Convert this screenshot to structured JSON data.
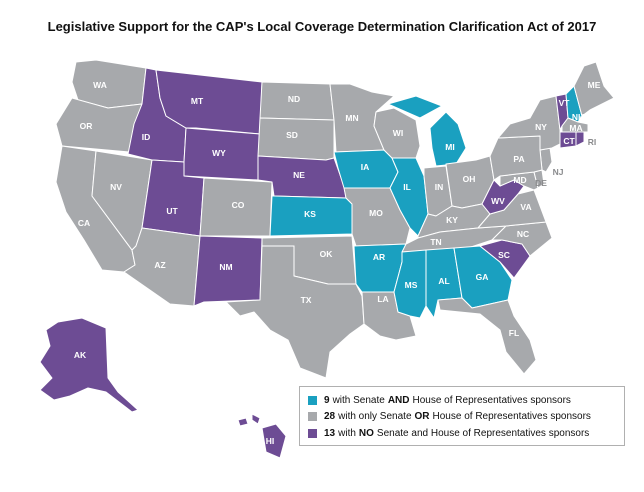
{
  "title": "Legislative Support for the CAP's Local Coverage Determination Clarification Act of 2017",
  "colors": {
    "both": "#1aa0c0",
    "one": "#a7a9ac",
    "none": "#6d4c94",
    "outside_label": "#8a8b8d"
  },
  "legend": {
    "items": [
      {
        "key": "both",
        "count": "9",
        "pre": "with Senate",
        "emph": "AND",
        "post": "House of Representatives sponsors"
      },
      {
        "key": "one",
        "count": "28",
        "pre": "with only Senate",
        "emph": "OR",
        "post": "House of Representatives sponsors"
      },
      {
        "key": "none",
        "count": "13",
        "pre": "with",
        "emph": "NO",
        "post": "Senate and House of Representatives sponsors"
      }
    ]
  },
  "states": [
    {
      "abbr": "WA",
      "status": "one"
    },
    {
      "abbr": "OR",
      "status": "one"
    },
    {
      "abbr": "CA",
      "status": "one"
    },
    {
      "abbr": "NV",
      "status": "one"
    },
    {
      "abbr": "ID",
      "status": "none"
    },
    {
      "abbr": "MT",
      "status": "none"
    },
    {
      "abbr": "WY",
      "status": "none"
    },
    {
      "abbr": "UT",
      "status": "none"
    },
    {
      "abbr": "AZ",
      "status": "one"
    },
    {
      "abbr": "CO",
      "status": "one"
    },
    {
      "abbr": "NM",
      "status": "none"
    },
    {
      "abbr": "ND",
      "status": "one"
    },
    {
      "abbr": "SD",
      "status": "one"
    },
    {
      "abbr": "NE",
      "status": "none"
    },
    {
      "abbr": "KS",
      "status": "both"
    },
    {
      "abbr": "OK",
      "status": "one"
    },
    {
      "abbr": "TX",
      "status": "one"
    },
    {
      "abbr": "MN",
      "status": "one"
    },
    {
      "abbr": "IA",
      "status": "both"
    },
    {
      "abbr": "MO",
      "status": "one"
    },
    {
      "abbr": "AR",
      "status": "both"
    },
    {
      "abbr": "LA",
      "status": "one"
    },
    {
      "abbr": "WI",
      "status": "one"
    },
    {
      "abbr": "IL",
      "status": "both"
    },
    {
      "abbr": "MI",
      "status": "both"
    },
    {
      "abbr": "IN",
      "status": "one"
    },
    {
      "abbr": "OH",
      "status": "one"
    },
    {
      "abbr": "KY",
      "status": "one"
    },
    {
      "abbr": "TN",
      "status": "one"
    },
    {
      "abbr": "MS",
      "status": "both"
    },
    {
      "abbr": "AL",
      "status": "both"
    },
    {
      "abbr": "GA",
      "status": "both"
    },
    {
      "abbr": "FL",
      "status": "one"
    },
    {
      "abbr": "SC",
      "status": "none"
    },
    {
      "abbr": "NC",
      "status": "one"
    },
    {
      "abbr": "VA",
      "status": "one"
    },
    {
      "abbr": "WV",
      "status": "none"
    },
    {
      "abbr": "MD",
      "status": "one"
    },
    {
      "abbr": "DE",
      "status": "one"
    },
    {
      "abbr": "NJ",
      "status": "one"
    },
    {
      "abbr": "PA",
      "status": "one"
    },
    {
      "abbr": "NY",
      "status": "one"
    },
    {
      "abbr": "VT",
      "status": "none"
    },
    {
      "abbr": "NH",
      "status": "both"
    },
    {
      "abbr": "ME",
      "status": "one"
    },
    {
      "abbr": "MA",
      "status": "one"
    },
    {
      "abbr": "CT",
      "status": "none"
    },
    {
      "abbr": "RI",
      "status": "none"
    },
    {
      "abbr": "AK",
      "status": "none"
    },
    {
      "abbr": "HI",
      "status": "none"
    }
  ]
}
